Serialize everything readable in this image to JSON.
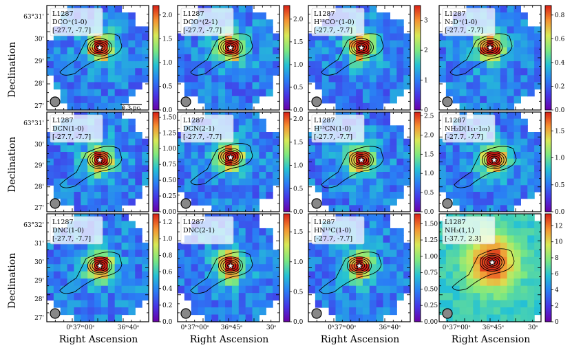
{
  "figure": {
    "y_axis_label": "Declination",
    "x_axis_label": "Right Ascension",
    "scale_bar_label": "0.3 pc",
    "star_symbol": "★"
  },
  "colors": {
    "colormap": [
      "#6a00a8",
      "#4636e6",
      "#2a7df5",
      "#25c2d4",
      "#7ee87f",
      "#d8e956",
      "#f59231",
      "#d91f16"
    ],
    "contour": "#000000",
    "beam": "#888888"
  },
  "chart_data": [
    {
      "type": "heatmap",
      "source": "L1287",
      "line": "DCO⁺(1-0)",
      "velocity_range": "[-27.7, -7.7]",
      "colorbar_ticks": [
        "0.0",
        "0.5",
        "1.0",
        "1.5",
        "2.0"
      ],
      "colorbar_range": [
        0,
        2.2
      ],
      "dec_ticks": [
        "63°31'",
        "30'",
        "29'",
        "28'",
        "27'"
      ],
      "ra_ticks": []
    },
    {
      "type": "heatmap",
      "source": "L1287",
      "line": "DCO⁺(2-1)",
      "velocity_range": "[-27.7, -7.7]",
      "colorbar_ticks": [
        "0.0",
        "0.5",
        "1.0",
        "1.5",
        "2.0"
      ],
      "colorbar_range": [
        0,
        2.3
      ],
      "dec_ticks": [],
      "ra_ticks": []
    },
    {
      "type": "heatmap",
      "source": "L1287",
      "line": "H¹³CO⁺(1-0)",
      "velocity_range": "[-27.7, -7.7]",
      "colorbar_ticks": [
        "0",
        "1",
        "2",
        "3"
      ],
      "colorbar_range": [
        0,
        3.5
      ],
      "dec_ticks": [],
      "ra_ticks": []
    },
    {
      "type": "heatmap",
      "source": "L1287",
      "line": "N₂D⁺(1-0)",
      "velocity_range": "[-27.7, -7.7]",
      "colorbar_ticks": [
        "0.0",
        "0.2",
        "0.4",
        "0.6",
        "0.8"
      ],
      "colorbar_range": [
        0,
        0.88
      ],
      "dec_ticks": [],
      "ra_ticks": []
    },
    {
      "type": "heatmap",
      "source": "L1287",
      "line": "DCN(1-0)",
      "velocity_range": "[-27.7, -7.7]",
      "colorbar_ticks": [
        "0.00",
        "0.25",
        "0.50",
        "0.75",
        "1.00",
        "1.25",
        "1.50"
      ],
      "colorbar_range": [
        0,
        1.58
      ],
      "dec_ticks": [
        "63°31'",
        "30'",
        "29'",
        "28'",
        "27'"
      ],
      "ra_ticks": []
    },
    {
      "type": "heatmap",
      "source": "L1287",
      "line": "DCN(2-1)",
      "velocity_range": "[-27.7, -7.7]",
      "colorbar_ticks": [
        "0.0",
        "0.5",
        "1.0",
        "1.5",
        "2.0"
      ],
      "colorbar_range": [
        0,
        2.15
      ],
      "dec_ticks": [],
      "ra_ticks": []
    },
    {
      "type": "heatmap",
      "source": "L1287",
      "line": "H¹³CN(1-0)",
      "velocity_range": "[-27.7, -7.7]",
      "colorbar_ticks": [
        "0.0",
        "0.5",
        "1.0",
        "1.5",
        "2.0",
        "2.5"
      ],
      "colorbar_range": [
        0,
        2.6
      ],
      "dec_ticks": [],
      "ra_ticks": []
    },
    {
      "type": "heatmap",
      "source": "L1287",
      "line": "NH₂D(1₁₁-1₀₁)",
      "velocity_range": "[-27.7, -7.7]",
      "colorbar_ticks": [
        "0.0",
        "0.5",
        "1.0",
        "1.5"
      ],
      "colorbar_range": [
        0,
        1.85
      ],
      "dec_ticks": [],
      "ra_ticks": []
    },
    {
      "type": "heatmap",
      "source": "L1287",
      "line": "DNC(1-0)",
      "velocity_range": "[-27.7, -7.7]",
      "colorbar_ticks": [
        "0.0",
        "0.2",
        "0.4",
        "0.6",
        "0.8",
        "1.0",
        "1.2"
      ],
      "colorbar_range": [
        0,
        1.3
      ],
      "dec_ticks": [
        "63°32'",
        "31'",
        "30'",
        "29'",
        "28'",
        "27'"
      ],
      "ra_ticks": [
        "0ʰ37ᵐ00ˢ",
        "36ᵐ40ˢ"
      ]
    },
    {
      "type": "heatmap",
      "source": "L1287",
      "line": "DNC(2-1)",
      "velocity_range": "",
      "colorbar_ticks": [
        "0.0",
        "0.5",
        "1.0",
        "1.5"
      ],
      "colorbar_range": [
        0,
        1.8
      ],
      "dec_ticks": [],
      "ra_ticks": [
        "0ʰ37ᵐ00ˢ",
        "36ᵐ45ˢ",
        "30ˢ"
      ]
    },
    {
      "type": "heatmap",
      "source": "L1287",
      "line": "HN¹³C(1-0)",
      "velocity_range": "[-27.7, -7.7]",
      "colorbar_ticks": [
        "0.00",
        "0.25",
        "0.50",
        "0.75",
        "1.00",
        "1.25",
        "1.50"
      ],
      "colorbar_range": [
        0,
        1.65
      ],
      "dec_ticks": [],
      "ra_ticks": [
        "0ʰ37ᵐ00ˢ",
        "36ᵐ40ˢ"
      ]
    },
    {
      "type": "heatmap",
      "source": "L1287",
      "line": "NH₃(1,1)",
      "velocity_range": "[-37.7, 2.3]",
      "colorbar_ticks": [
        "0",
        "2",
        "4",
        "6",
        "8",
        "10",
        "12"
      ],
      "colorbar_range": [
        0,
        13.5
      ],
      "dec_ticks": [],
      "ra_ticks": [
        "0ʰ37ᵐ00ˢ",
        "36ᵐ45ˢ",
        "30ˢ"
      ]
    }
  ]
}
